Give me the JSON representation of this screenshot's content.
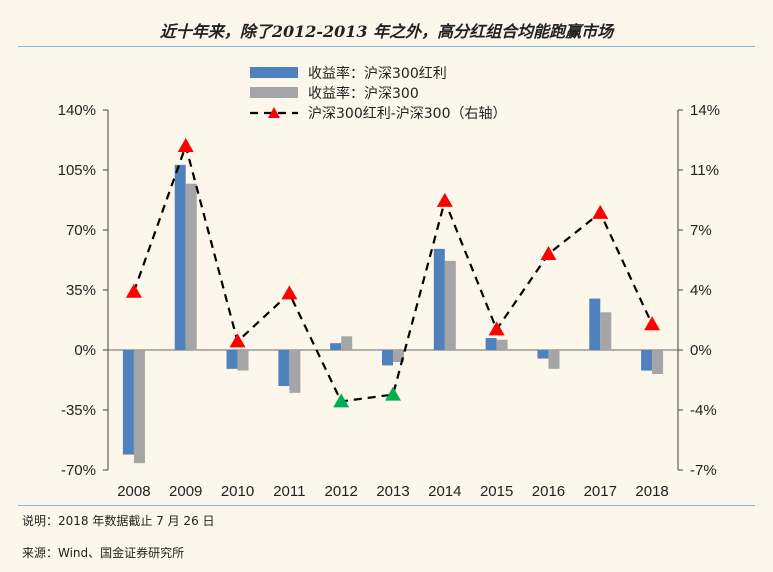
{
  "title": "近十年来，除了2012-2013 年之外，高分红组合均能跑赢市场",
  "footnote_note": "说明：2018 年数据截止 7 月 26 日",
  "footnote_source": "来源：Wind、国金证券研究所",
  "chart_data": {
    "type": "bar",
    "categories": [
      "2008",
      "2009",
      "2010",
      "2011",
      "2012",
      "2013",
      "2014",
      "2015",
      "2016",
      "2017",
      "2018"
    ],
    "series": [
      {
        "name": "收益率：沪深300红利",
        "kind": "bar",
        "axis": "left",
        "color": "#4f81bd",
        "values": [
          -61,
          108,
          -11,
          -21,
          4,
          -9,
          59,
          7,
          -5,
          30,
          -12
        ]
      },
      {
        "name": "收益率：沪深300",
        "kind": "bar",
        "axis": "left",
        "color": "#a5a5a5",
        "values": [
          -66,
          97,
          -12,
          -25,
          8,
          -7,
          52,
          6,
          -11,
          22,
          -14
        ]
      },
      {
        "name": "沪深300红利-沪深300（右轴）",
        "kind": "line",
        "axis": "right",
        "color": "#000000",
        "marker_colors": {
          "positive": "#ff0000",
          "negative": "#00b050"
        },
        "values": [
          3.4,
          11.9,
          0.5,
          3.3,
          -3.0,
          -2.6,
          8.7,
          1.2,
          5.6,
          8.0,
          1.5
        ]
      }
    ],
    "left_axis": {
      "ylim": [
        -70,
        140
      ],
      "ticks": [
        "-70%",
        "-35%",
        "0%",
        "35%",
        "70%",
        "105%",
        "140%"
      ]
    },
    "right_axis": {
      "ylim": [
        -7,
        14
      ],
      "ticks": [
        "-7%",
        "-4%",
        "0%",
        "4%",
        "7%",
        "11%",
        "14%"
      ]
    },
    "legend_position": "top-center",
    "grid": false
  }
}
